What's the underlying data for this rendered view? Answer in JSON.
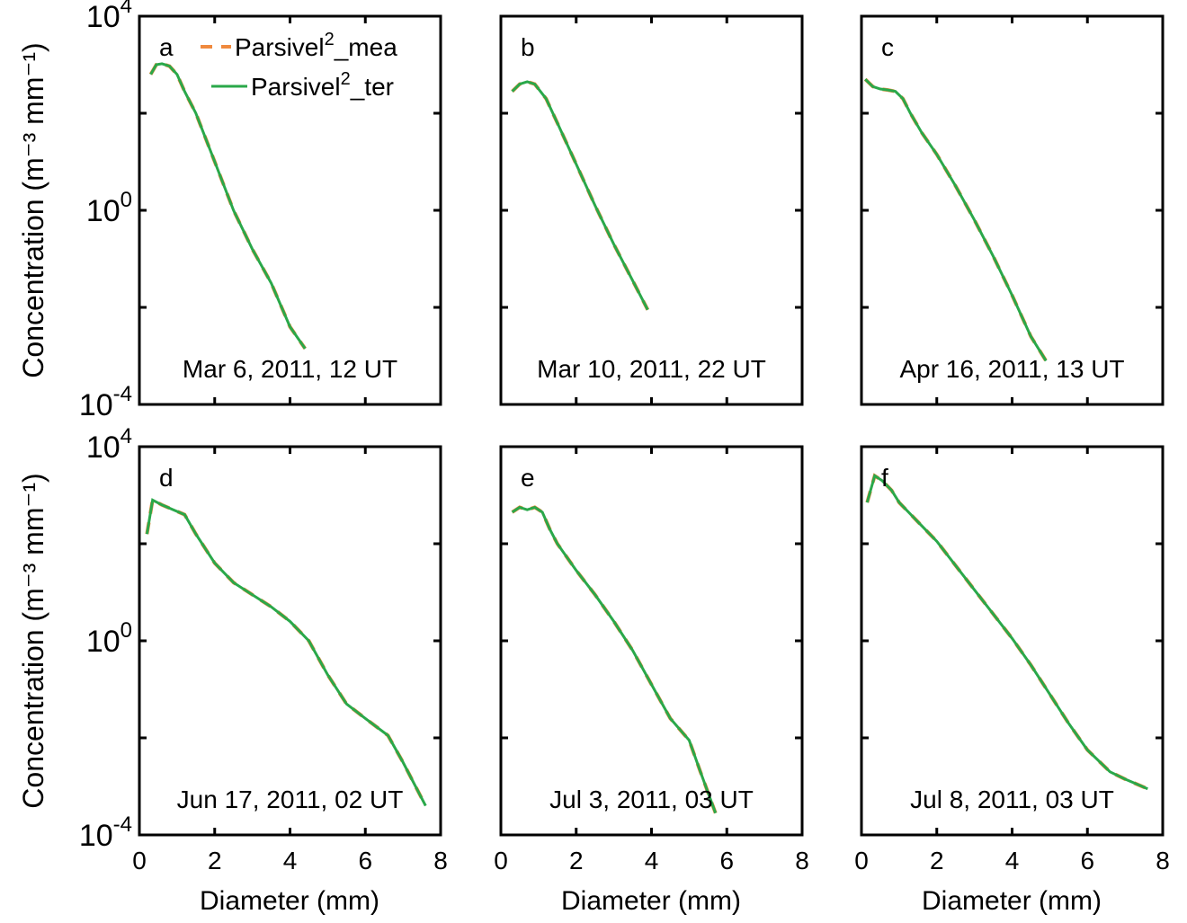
{
  "figure": {
    "ylabel": "Concentration (m⁻³ mm⁻¹)",
    "xlabel": "Diameter (mm)",
    "colors": {
      "mea": "#f08a3e",
      "ter": "#2aa84a"
    }
  },
  "chart_data": [
    {
      "type": "line",
      "panel_letter": "a",
      "annotation": "Mar 6, 2011, 12 UT",
      "xlim": [
        0,
        8
      ],
      "ylim": [
        -4,
        4
      ],
      "yscale": "log10",
      "ylim_display": [
        "10^-4",
        "10^4"
      ],
      "xticks": [
        0,
        2,
        4,
        6,
        8
      ],
      "yticks": [
        -4,
        -2,
        0,
        2,
        4
      ],
      "ytick_labels": [
        "10^-4",
        "",
        "10^0",
        "",
        "10^4"
      ],
      "grid": false,
      "legend_position": "top-right",
      "series": [
        {
          "name": "Parsivel²_mea",
          "style": "dashed",
          "x": [
            0.3,
            0.45,
            0.6,
            0.8,
            1.0,
            1.2,
            1.5,
            2.0,
            2.5,
            3.0,
            3.5,
            4.0,
            4.4
          ],
          "log10_y": [
            2.8,
            3.0,
            3.02,
            2.97,
            2.8,
            2.45,
            2.0,
            1.0,
            0.0,
            -0.8,
            -1.5,
            -2.4,
            -2.85
          ]
        },
        {
          "name": "Parsivel²_ter",
          "style": "solid",
          "x": [
            0.3,
            0.45,
            0.6,
            0.8,
            1.0,
            1.2,
            1.5,
            2.0,
            2.5,
            3.0,
            3.5,
            4.0,
            4.4
          ],
          "log10_y": [
            2.8,
            3.0,
            3.02,
            2.97,
            2.8,
            2.45,
            2.0,
            1.0,
            0.0,
            -0.8,
            -1.5,
            -2.4,
            -2.85
          ]
        }
      ]
    },
    {
      "type": "line",
      "panel_letter": "b",
      "annotation": "Mar 10, 2011, 22 UT",
      "xlim": [
        0,
        8
      ],
      "ylim": [
        -4,
        4
      ],
      "yscale": "log10",
      "xticks": [
        0,
        2,
        4,
        6,
        8
      ],
      "yticks": [
        -4,
        -2,
        0,
        2,
        4
      ],
      "grid": false,
      "series": [
        {
          "name": "Parsivel²_mea",
          "style": "dashed",
          "x": [
            0.3,
            0.5,
            0.7,
            0.9,
            1.2,
            1.5,
            2.0,
            2.5,
            3.0,
            3.5,
            3.9
          ],
          "log10_y": [
            2.45,
            2.6,
            2.65,
            2.6,
            2.3,
            1.8,
            0.95,
            0.1,
            -0.7,
            -1.45,
            -2.05
          ]
        },
        {
          "name": "Parsivel²_ter",
          "style": "solid",
          "x": [
            0.3,
            0.5,
            0.7,
            0.9,
            1.2,
            1.5,
            2.0,
            2.5,
            3.0,
            3.5,
            3.9
          ],
          "log10_y": [
            2.45,
            2.6,
            2.65,
            2.6,
            2.3,
            1.8,
            0.95,
            0.1,
            -0.7,
            -1.45,
            -2.05
          ]
        }
      ]
    },
    {
      "type": "line",
      "panel_letter": "c",
      "annotation": "Apr 16, 2011, 13 UT",
      "xlim": [
        0,
        8
      ],
      "ylim": [
        -4,
        4
      ],
      "yscale": "log10",
      "xticks": [
        0,
        2,
        4,
        6,
        8
      ],
      "yticks": [
        -4,
        -2,
        0,
        2,
        4
      ],
      "grid": false,
      "series": [
        {
          "name": "Parsivel²_mea",
          "style": "dashed",
          "x": [
            0.1,
            0.3,
            0.5,
            0.7,
            0.9,
            1.1,
            1.3,
            1.6,
            2.0,
            2.5,
            3.0,
            3.5,
            4.0,
            4.5,
            4.9
          ],
          "log10_y": [
            2.7,
            2.55,
            2.5,
            2.48,
            2.45,
            2.3,
            2.0,
            1.6,
            1.15,
            0.5,
            -0.2,
            -0.95,
            -1.75,
            -2.6,
            -3.1
          ]
        },
        {
          "name": "Parsivel²_ter",
          "style": "solid",
          "x": [
            0.1,
            0.3,
            0.5,
            0.7,
            0.9,
            1.1,
            1.3,
            1.6,
            2.0,
            2.5,
            3.0,
            3.5,
            4.0,
            4.5,
            4.9
          ],
          "log10_y": [
            2.7,
            2.55,
            2.5,
            2.48,
            2.45,
            2.3,
            2.0,
            1.6,
            1.15,
            0.5,
            -0.2,
            -0.95,
            -1.75,
            -2.6,
            -3.1
          ]
        }
      ]
    },
    {
      "type": "line",
      "panel_letter": "d",
      "annotation": "Jun 17, 2011, 02 UT",
      "xlim": [
        0,
        8
      ],
      "ylim": [
        -4,
        4
      ],
      "yscale": "log10",
      "xticks": [
        0,
        2,
        4,
        6,
        8
      ],
      "yticks": [
        -4,
        -2,
        0,
        2,
        4
      ],
      "ytick_labels": [
        "10^-4",
        "",
        "10^0",
        "",
        "10^4"
      ],
      "grid": false,
      "series": [
        {
          "name": "Parsivel²_mea",
          "style": "dashed",
          "x": [
            0.2,
            0.35,
            0.6,
            0.9,
            1.2,
            1.5,
            2.0,
            2.5,
            3.0,
            3.5,
            4.0,
            4.5,
            5.0,
            5.5,
            6.0,
            6.6,
            7.0,
            7.6
          ],
          "log10_y": [
            2.2,
            2.9,
            2.8,
            2.7,
            2.6,
            2.2,
            1.6,
            1.2,
            0.95,
            0.7,
            0.4,
            0.0,
            -0.7,
            -1.3,
            -1.6,
            -1.95,
            -2.5,
            -3.4
          ]
        },
        {
          "name": "Parsivel²_ter",
          "style": "solid",
          "x": [
            0.2,
            0.35,
            0.6,
            0.9,
            1.2,
            1.5,
            2.0,
            2.5,
            3.0,
            3.5,
            4.0,
            4.5,
            5.0,
            5.5,
            6.0,
            6.6,
            7.0,
            7.6
          ],
          "log10_y": [
            2.2,
            2.9,
            2.8,
            2.7,
            2.6,
            2.2,
            1.6,
            1.2,
            0.95,
            0.7,
            0.4,
            0.0,
            -0.7,
            -1.3,
            -1.6,
            -1.95,
            -2.5,
            -3.4
          ]
        }
      ]
    },
    {
      "type": "line",
      "panel_letter": "e",
      "annotation": "Jul 3, 2011, 03 UT",
      "xlim": [
        0,
        8
      ],
      "ylim": [
        -4,
        4
      ],
      "yscale": "log10",
      "xticks": [
        0,
        2,
        4,
        6,
        8
      ],
      "yticks": [
        -4,
        -2,
        0,
        2,
        4
      ],
      "grid": false,
      "series": [
        {
          "name": "Parsivel²_mea",
          "style": "dashed",
          "x": [
            0.3,
            0.5,
            0.7,
            0.9,
            1.1,
            1.3,
            1.5,
            2.0,
            2.5,
            3.0,
            3.5,
            4.0,
            4.5,
            5.0,
            5.3,
            5.7
          ],
          "log10_y": [
            2.65,
            2.75,
            2.7,
            2.75,
            2.65,
            2.3,
            2.0,
            1.45,
            0.95,
            0.4,
            -0.2,
            -0.9,
            -1.6,
            -2.05,
            -2.7,
            -3.55
          ]
        },
        {
          "name": "Parsivel²_ter",
          "style": "solid",
          "x": [
            0.3,
            0.5,
            0.7,
            0.9,
            1.1,
            1.3,
            1.5,
            2.0,
            2.5,
            3.0,
            3.5,
            4.0,
            4.5,
            5.0,
            5.3,
            5.7
          ],
          "log10_y": [
            2.65,
            2.75,
            2.7,
            2.75,
            2.65,
            2.3,
            2.0,
            1.45,
            0.95,
            0.4,
            -0.2,
            -0.9,
            -1.6,
            -2.05,
            -2.7,
            -3.55
          ]
        }
      ]
    },
    {
      "type": "line",
      "panel_letter": "f",
      "annotation": "Jul 8, 2011, 03 UT",
      "xlim": [
        0,
        8
      ],
      "ylim": [
        -4,
        4
      ],
      "yscale": "log10",
      "xticks": [
        0,
        2,
        4,
        6,
        8
      ],
      "yticks": [
        -4,
        -2,
        0,
        2,
        4
      ],
      "grid": false,
      "series": [
        {
          "name": "Parsivel²_mea",
          "style": "dashed",
          "x": [
            0.15,
            0.35,
            0.55,
            0.8,
            1.0,
            1.5,
            2.0,
            2.5,
            3.0,
            3.5,
            4.0,
            4.5,
            5.0,
            5.5,
            6.0,
            6.6,
            7.0,
            7.6
          ],
          "log10_y": [
            2.85,
            3.4,
            3.3,
            3.1,
            2.85,
            2.45,
            2.05,
            1.55,
            1.05,
            0.55,
            0.05,
            -0.5,
            -1.1,
            -1.7,
            -2.25,
            -2.7,
            -2.85,
            -3.05
          ]
        },
        {
          "name": "Parsivel²_ter",
          "style": "solid",
          "x": [
            0.15,
            0.35,
            0.55,
            0.8,
            1.0,
            1.5,
            2.0,
            2.5,
            3.0,
            3.5,
            4.0,
            4.5,
            5.0,
            5.5,
            6.0,
            6.6,
            7.0,
            7.6
          ],
          "log10_y": [
            2.85,
            3.4,
            3.3,
            3.1,
            2.85,
            2.45,
            2.05,
            1.55,
            1.05,
            0.55,
            0.05,
            -0.5,
            -1.1,
            -1.7,
            -2.25,
            -2.7,
            -2.85,
            -3.05
          ]
        }
      ]
    }
  ]
}
